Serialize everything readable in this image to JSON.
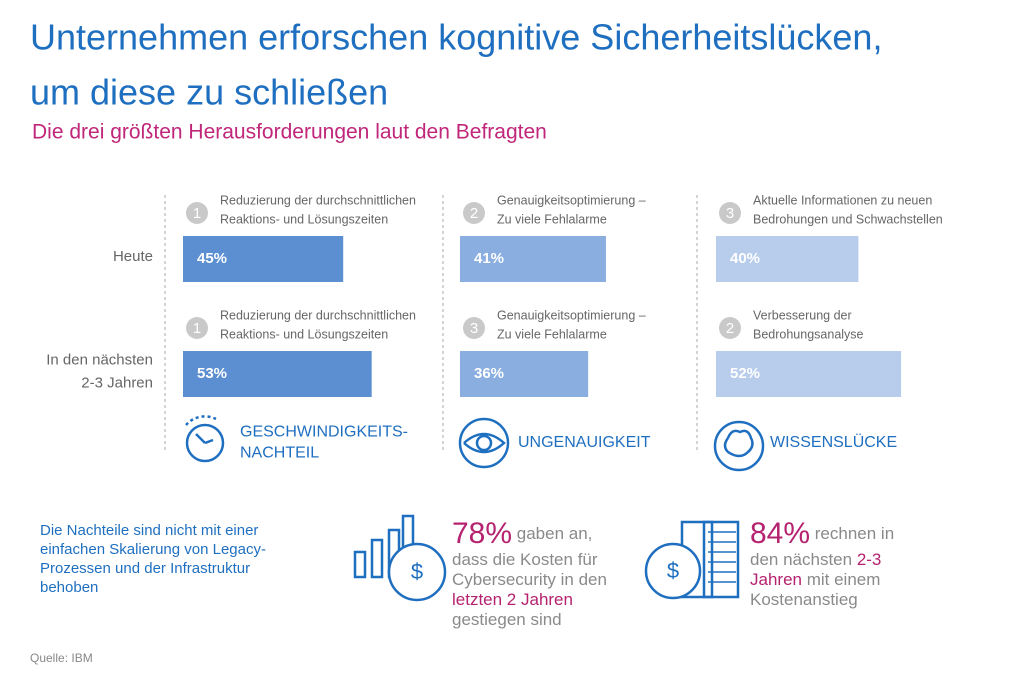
{
  "header": {
    "title_lines": [
      "Unternehmen erforschen kognitive Sicherheitslücken,",
      "um diese zu schließen"
    ],
    "subtitle": "Die drei größten Herausforderungen laut den Befragten"
  },
  "rows": [
    {
      "label_lines": [
        "Heute"
      ]
    },
    {
      "label_lines": [
        "In den nächsten",
        "2-3 Jahren"
      ]
    }
  ],
  "columns": [
    {
      "color": "#5b8fd1",
      "category_lines": [
        "GESCHWINDIGKEITS-",
        "NACHTEIL"
      ],
      "items": [
        {
          "rank": 1,
          "label_lines": [
            "Reduzierung der durchschnittlichen",
            "Reaktions- und Lösungszeiten"
          ],
          "value": 45,
          "value_label": "45%"
        },
        {
          "rank": 1,
          "label_lines": [
            "Reduzierung der durchschnittlichen",
            "Reaktions- und Lösungszeiten"
          ],
          "value": 53,
          "value_label": "53%"
        }
      ]
    },
    {
      "color": "#8aaee0",
      "category_lines": [
        "UNGENAUIGKEIT"
      ],
      "items": [
        {
          "rank": 2,
          "label_lines": [
            "Genauigkeitsoptimierung –",
            "Zu viele Fehlalarme"
          ],
          "value": 41,
          "value_label": "41%"
        },
        {
          "rank": 3,
          "label_lines": [
            "Genauigkeitsoptimierung –",
            "Zu viele Fehlalarme"
          ],
          "value": 36,
          "value_label": "36%"
        }
      ]
    },
    {
      "color": "#b8cdec",
      "category_lines": [
        "WISSENSLÜCKE"
      ],
      "items": [
        {
          "rank": 3,
          "label_lines": [
            "Aktuelle Informationen zu neuen",
            "Bedrohungen und Schwachstellen"
          ],
          "value": 40,
          "value_label": "40%"
        },
        {
          "rank": 2,
          "label_lines": [
            "Verbesserung der",
            "Bedrohungsanalyse"
          ],
          "value": 52,
          "value_label": "52%"
        }
      ]
    }
  ],
  "note_lines": [
    "Die Nachteile sind nicht mit einer",
    "einfachen Skalierung von Legacy-",
    "Prozessen und der Infrastruktur",
    "behoben"
  ],
  "stats": [
    {
      "symbol": "$",
      "lines": [
        [
          {
            "text": "78%",
            "color": "#b5226f",
            "big": true
          },
          {
            "text": " gaben an,",
            "color": "#8a8a8a"
          }
        ],
        [
          {
            "text": "dass die Kosten für",
            "color": "#8a8a8a"
          }
        ],
        [
          {
            "text": "Cybersecurity in den",
            "color": "#8a8a8a"
          }
        ],
        [
          {
            "text": "letzten 2 Jahren",
            "color": "#b5226f"
          }
        ],
        [
          {
            "text": "gestiegen sind",
            "color": "#8a8a8a"
          }
        ]
      ]
    },
    {
      "symbol": "$",
      "lines": [
        [
          {
            "text": "84%",
            "color": "#b5226f",
            "big": true
          },
          {
            "text": " rechnen in",
            "color": "#8a8a8a"
          }
        ],
        [
          {
            "text": "den nächsten ",
            "color": "#8a8a8a"
          },
          {
            "text": "2-3",
            "color": "#b5226f"
          }
        ],
        [
          {
            "text": "Jahren",
            "color": "#b5226f"
          },
          {
            "text": " mit einem",
            "color": "#8a8a8a"
          }
        ],
        [
          {
            "text": "Kostenanstieg",
            "color": "#8a8a8a"
          }
        ]
      ]
    }
  ],
  "source": "Quelle: IBM"
}
